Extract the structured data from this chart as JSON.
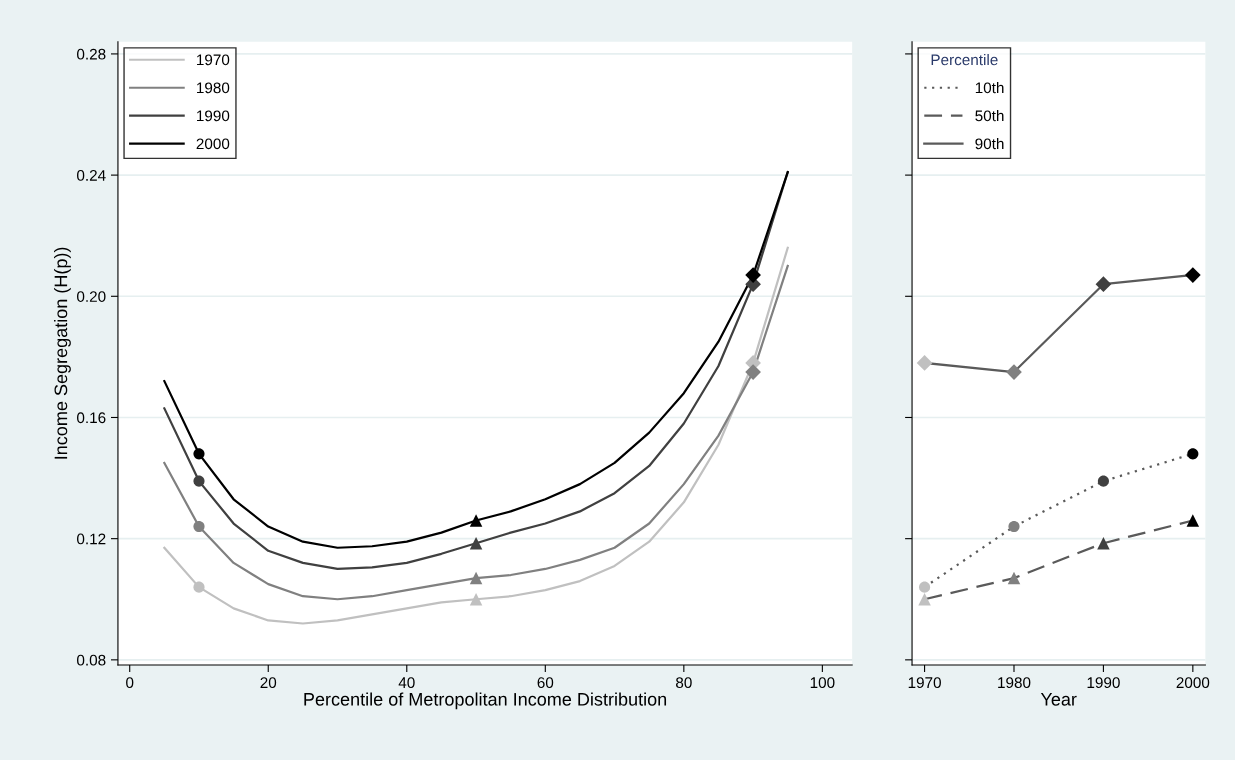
{
  "chart_data": [
    {
      "type": "line",
      "xlabel": "Percentile of Metropolitan Income Distribution",
      "ylabel": "Income Segregation (H(p))",
      "x": [
        5,
        10,
        15,
        20,
        25,
        30,
        35,
        40,
        45,
        50,
        55,
        60,
        65,
        70,
        75,
        80,
        85,
        90,
        95
      ],
      "xlim": [
        -1.7,
        104.3
      ],
      "xticks": [
        0,
        20,
        40,
        60,
        80,
        100
      ],
      "ylim": [
        0.0783,
        0.284
      ],
      "yticks": [
        {
          "value": 0.08,
          "label": "0.08"
        },
        {
          "value": 0.12,
          "label": "0.12"
        },
        {
          "value": 0.16,
          "label": "0.16"
        },
        {
          "value": 0.2,
          "label": "0.20"
        },
        {
          "value": 0.24,
          "label": "0.24"
        },
        {
          "value": 0.28,
          "label": "0.28"
        }
      ],
      "grid": "y",
      "legend": "top left",
      "series": [
        {
          "name": "1970",
          "color": "#c0c0c0",
          "values": [
            0.117,
            0.104,
            0.097,
            0.093,
            0.092,
            0.093,
            0.095,
            0.097,
            0.099,
            0.1,
            0.101,
            0.103,
            0.106,
            0.111,
            0.119,
            0.132,
            0.151,
            0.178,
            0.216
          ]
        },
        {
          "name": "1980",
          "color": "#808080",
          "values": [
            0.145,
            0.124,
            0.112,
            0.105,
            0.101,
            0.1,
            0.101,
            0.103,
            0.105,
            0.107,
            0.108,
            0.11,
            0.113,
            0.117,
            0.125,
            0.138,
            0.154,
            0.175,
            0.21
          ]
        },
        {
          "name": "1990",
          "color": "#404040",
          "values": [
            0.163,
            0.139,
            0.125,
            0.116,
            0.112,
            0.11,
            0.1105,
            0.112,
            0.115,
            0.1185,
            0.122,
            0.125,
            0.129,
            0.135,
            0.144,
            0.158,
            0.177,
            0.204,
            0.241
          ]
        },
        {
          "name": "2000",
          "color": "#000000",
          "values": [
            0.172,
            0.148,
            0.133,
            0.124,
            0.119,
            0.117,
            0.1175,
            0.119,
            0.122,
            0.126,
            0.129,
            0.133,
            0.138,
            0.145,
            0.155,
            0.168,
            0.185,
            0.207,
            0.241
          ]
        },
        {
          "type": "scatter",
          "marker": "circle",
          "x": [
            10,
            10,
            10,
            10
          ],
          "colors": [
            "#c0c0c0",
            "#808080",
            "#404040",
            "#000000"
          ],
          "values": [
            0.104,
            0.124,
            0.139,
            0.148
          ]
        },
        {
          "type": "scatter",
          "marker": "triangle",
          "x": [
            50,
            50,
            50,
            50
          ],
          "colors": [
            "#c0c0c0",
            "#808080",
            "#404040",
            "#000000"
          ],
          "values": [
            0.1,
            0.107,
            0.1185,
            0.126
          ]
        },
        {
          "type": "scatter",
          "marker": "diamond",
          "x": [
            90,
            90,
            90,
            90
          ],
          "colors": [
            "#c0c0c0",
            "#808080",
            "#404040",
            "#000000"
          ],
          "values": [
            0.178,
            0.175,
            0.204,
            0.207
          ]
        }
      ]
    },
    {
      "type": "line",
      "xlabel": "Year",
      "x": [
        1970,
        1980,
        1990,
        2000
      ],
      "xlim": [
        1968.6,
        2001.4
      ],
      "xticks": [
        1970,
        1980,
        1990,
        2000
      ],
      "ylim": [
        0.0783,
        0.284
      ],
      "yticks": [
        {
          "value": 0.08,
          "label": null
        },
        {
          "value": 0.12,
          "label": null
        },
        {
          "value": 0.16,
          "label": null
        },
        {
          "value": 0.2,
          "label": null
        },
        {
          "value": 0.24,
          "label": null
        },
        {
          "value": 0.28,
          "label": null
        }
      ],
      "tick_labels": "x",
      "grid": "y",
      "legend": "top left",
      "legend_title": "Percentile",
      "series": [
        {
          "name": "10th",
          "color": "#5a5a5a",
          "line_style": "dotted",
          "marker": "circle",
          "colors": [
            "#c0c0c0",
            "#808080",
            "#404040",
            "#000000"
          ],
          "values": [
            0.104,
            0.124,
            0.139,
            0.148
          ]
        },
        {
          "name": "50th",
          "color": "#5a5a5a",
          "line_style": "dashed",
          "marker": "triangle",
          "colors": [
            "#c0c0c0",
            "#808080",
            "#404040",
            "#000000"
          ],
          "values": [
            0.1,
            0.107,
            0.1185,
            0.126
          ]
        },
        {
          "name": "90th",
          "color": "#5a5a5a",
          "line_style": "solid",
          "marker": "diamond",
          "colors": [
            "#c0c0c0",
            "#808080",
            "#404040",
            "#000000"
          ],
          "values": [
            0.178,
            0.175,
            0.204,
            0.207
          ]
        }
      ]
    }
  ]
}
